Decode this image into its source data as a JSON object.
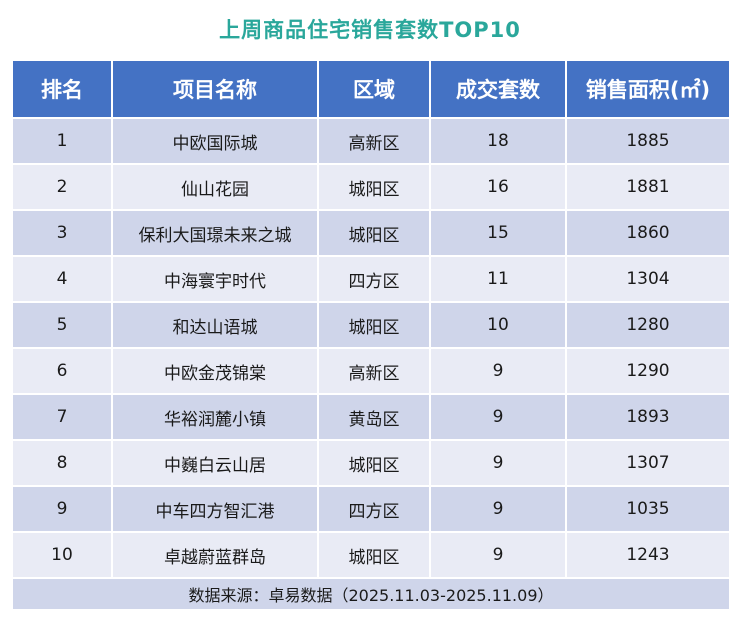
{
  "chart_data": {
    "type": "table",
    "title": "上周商品住宅销售套数TOP10",
    "columns": [
      "排名",
      "项目名称",
      "区域",
      "成交套数",
      "销售面积(㎡)"
    ],
    "rows": [
      [
        "1",
        "中欧国际城",
        "高新区",
        "18",
        "1885"
      ],
      [
        "2",
        "仙山花园",
        "城阳区",
        "16",
        "1881"
      ],
      [
        "3",
        "保利大国璟未来之城",
        "城阳区",
        "15",
        "1860"
      ],
      [
        "4",
        "中海寰宇时代",
        "四方区",
        "11",
        "1304"
      ],
      [
        "5",
        "和达山语城",
        "城阳区",
        "10",
        "1280"
      ],
      [
        "6",
        "中欧金茂锦棠",
        "高新区",
        "9",
        "1290"
      ],
      [
        "7",
        "华裕润麓小镇",
        "黄岛区",
        "9",
        "1893"
      ],
      [
        "8",
        "中巍白云山居",
        "城阳区",
        "9",
        "1307"
      ],
      [
        "9",
        "中车四方智汇港",
        "四方区",
        "9",
        "1035"
      ],
      [
        "10",
        "卓越蔚蓝群岛",
        "城阳区",
        "9",
        "1243"
      ]
    ],
    "source": "数据来源：卓易数据（2025.11.03-2025.11.09）",
    "colors": {
      "title": "#2aa79b",
      "header_bg": "#4472c4",
      "header_text": "#ffffff",
      "row_dark": "#cfd5ea",
      "row_light": "#e9ebf5"
    }
  }
}
